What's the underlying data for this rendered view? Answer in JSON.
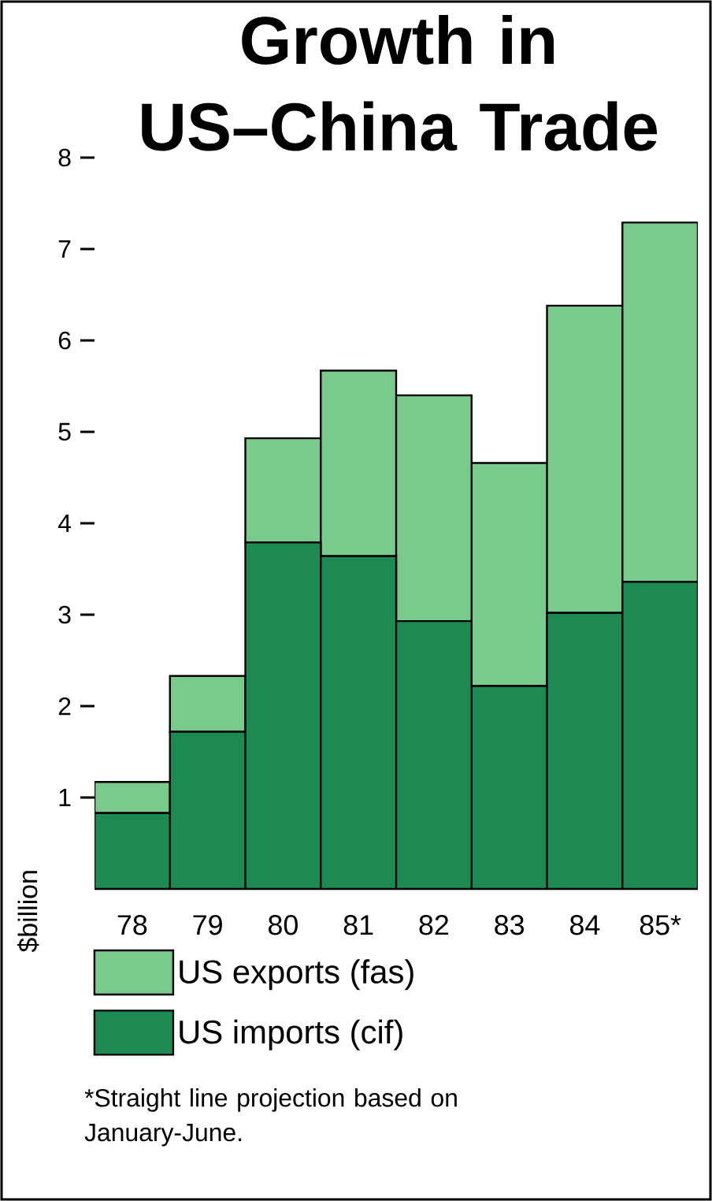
{
  "chart_data": {
    "type": "bar",
    "title": "Growth in US–China Trade",
    "ylabel": "$billion",
    "categories": [
      "78",
      "79",
      "80",
      "81",
      "82",
      "83",
      "84",
      "85*"
    ],
    "stacked": true,
    "ylim": [
      0,
      8
    ],
    "yticks": [
      1,
      2,
      3,
      4,
      5,
      6,
      7,
      8
    ],
    "legend": "bottom",
    "series": [
      {
        "name": "US imports (cif)",
        "color": "#1c8b52",
        "values": [
          0.83,
          1.72,
          3.79,
          3.64,
          2.93,
          2.22,
          3.02,
          3.36
        ]
      },
      {
        "name": "US exports (fas)",
        "color": "#79cb8c",
        "values": [
          0.34,
          0.61,
          1.14,
          2.03,
          2.47,
          2.44,
          3.36,
          3.93
        ]
      }
    ],
    "annotations": [
      "*Straight line projection based on January-June."
    ]
  }
}
